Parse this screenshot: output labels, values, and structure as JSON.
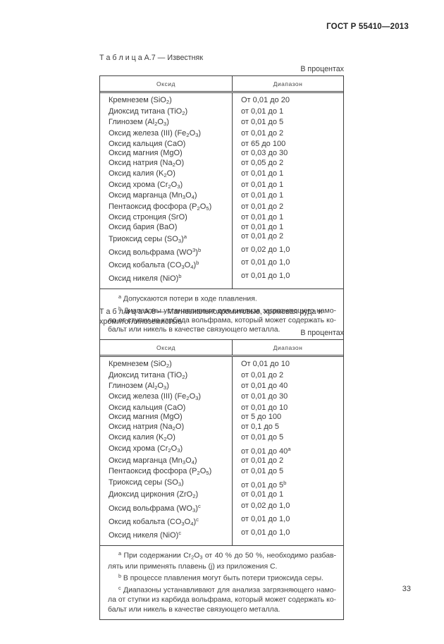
{
  "document_header": {
    "standard_code": "ГОСТ Р 55410—2013"
  },
  "tables": [
    {
      "caption": "Т а б л и ц а  А.7 — Известняк",
      "units_label": "В процентах",
      "columns": [
        "Оксид",
        "Диапазон"
      ],
      "rows": [
        [
          "Кремнезем (SiO~2~)",
          "От 0,01 до 20"
        ],
        [
          "Диоксид титана (TiO~2~)",
          "от 0,01 до 1"
        ],
        [
          "Глинозем (Al~2~O~3~)",
          "от 0,01 до 5"
        ],
        [
          "Оксид железа (III) (Fe~2~O~3~)",
          "от 0,01 до 2"
        ],
        [
          "Оксид кальция (CaO)",
          "от 65 до 100"
        ],
        [
          "Оксид магния (MgO)",
          "от 0,03 до 30"
        ],
        [
          "Оксид натрия (Na~2~O)",
          "от 0,05 до 2"
        ],
        [
          "Оксид калия (K~2~O)",
          "от 0,01 до 1"
        ],
        [
          "Оксид хрома (Cr~2~O~3~)",
          "от 0,01 до 1"
        ],
        [
          "Оксид марганца (Mn~3~O~4~)",
          "от 0,01 до 1"
        ],
        [
          "Пентаоксид фосфора (P~2~O~5~)",
          "от 0,01 до 2"
        ],
        [
          "Оксид стронция (SrO)",
          "от 0,01 до 1"
        ],
        [
          "Оксид бария (BaO)",
          "от 0,01 до 1"
        ],
        [
          "Триоксид серы (SO~3~)^a^",
          "от 0,01 до 2"
        ],
        [
          "Оксид вольфрама (WO^3^)^b^",
          "от 0,02 до 1,0"
        ],
        [
          "Оксид кобальта (CO~3~O~4~)^b^",
          "от 0,01 до 1,0"
        ],
        [
          "Оксид никеля (NiO)^b^",
          "от 0,01 до 1,0"
        ]
      ],
      "footnotes": [
        "^a^ Допускаются потери в ходе плавления.",
        "^b^ Диапазоны устанавливают для анализа загрязняющего намо­ла от ступки из карбида вольфрама, который может содержать ко­бальт или никель в качестве связующего металла."
      ]
    },
    {
      "caption": "Т а б л и ц а  А.8 — Магнезиальнохромитовые, хромовая руда и хромитог­линоземистые",
      "units_label": "В процентах",
      "columns": [
        "Оксид",
        "Диапазон"
      ],
      "rows": [
        [
          "Кремнезем (SiO~2~)",
          "От 0,01 до 10"
        ],
        [
          "Диоксид титана (TiO~2~)",
          "от 0,01 до 2"
        ],
        [
          "Глинозем (Al~2~O~3~)",
          "от 0,01 до 40"
        ],
        [
          "Оксид железа (III) (Fe~2~O~3~)",
          "от 0,01 до 30"
        ],
        [
          "Оксид кальция (CaO)",
          "от 0,01 до 10"
        ],
        [
          "Оксид магния (MgO)",
          "от 5 до 100"
        ],
        [
          "Оксид натрия (Na~2~O)",
          "от 0,1 до 5"
        ],
        [
          "Оксид калия (K~2~O)",
          "от 0,01 до 5"
        ],
        [
          "Оксид хрома (Cr~2~O~3~)",
          "от 0,01 до 40^a^"
        ],
        [
          "Оксид марганца (Mn~3~O~4~)",
          "от 0,01 до 2"
        ],
        [
          "Пентаоксид фосфора (P~2~O~5~)",
          "от 0,01 до 5"
        ],
        [
          "Триоксид серы (SO~3~)",
          "от 0,01 до 5^b^"
        ],
        [
          "Диоксид циркония (ZrO~2~)",
          "от 0,01 до 1"
        ],
        [
          "Оксид вольфрама (WO~3~)^c^",
          "от 0,02 до 1,0"
        ],
        [
          "Оксид кобальта (CO~3~O~4~)^c^",
          "от 0,01 до 1,0"
        ],
        [
          "Оксид никеля (NiO)^c^",
          "от 0,01 до 1,0"
        ]
      ],
      "footnotes": [
        "^a^ При содержании Cr~2~O~3~ от 40 % до 50 %, необходимо разбав­лять или применять плавень (j) из приложения С.",
        "^b^ В процессе плавления могут быть потери триоксида серы.",
        "^c^ Диапазоны устанавливают для анализа загрязняющего намо­ла от ступки из карбида вольфрама, который может содержать ко­бальт или никель в качестве связующего металла."
      ]
    }
  ],
  "footer": {
    "page_number": "33"
  }
}
